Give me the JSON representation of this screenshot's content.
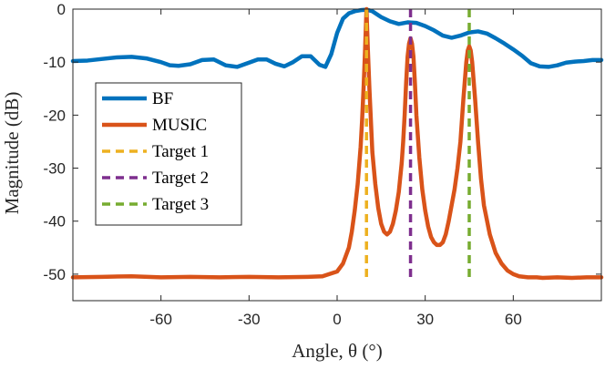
{
  "chart_data": {
    "type": "line",
    "title": "",
    "xlabel": "Angle, θ (°)",
    "ylabel": "Magnitude (dB)",
    "xlim": [
      -90,
      90
    ],
    "ylim": [
      -55,
      0
    ],
    "xticks": [
      -60,
      -30,
      0,
      30,
      60
    ],
    "yticks": [
      0,
      -10,
      -20,
      -30,
      -40,
      -50
    ],
    "xtick_labels": [
      "-60",
      "-30",
      "0",
      "30",
      "60"
    ],
    "ytick_labels": [
      "0",
      "-10",
      "-20",
      "-30",
      "-40",
      "-50"
    ],
    "grid": false,
    "legend_position": "left",
    "series": [
      {
        "name": "BF",
        "color": "#0072BD",
        "style": "solid",
        "x": [
          -90,
          -85,
          -80,
          -75,
          -70,
          -65,
          -60,
          -57,
          -54,
          -50,
          -46,
          -42,
          -38,
          -34,
          -30,
          -27,
          -24,
          -21,
          -18,
          -15,
          -12,
          -9,
          -6,
          -4,
          -2,
          0,
          2,
          4,
          6,
          8,
          10,
          12,
          15,
          18,
          21,
          24,
          27,
          30,
          33,
          36,
          39,
          42,
          45,
          48,
          51,
          54,
          57,
          60,
          63,
          66,
          69,
          72,
          75,
          78,
          81,
          84,
          87,
          90
        ],
        "y": [
          -9.8,
          -9.7,
          -9.4,
          -9.1,
          -9.0,
          -9.3,
          -10.0,
          -10.6,
          -10.7,
          -10.4,
          -9.6,
          -9.5,
          -10.6,
          -10.9,
          -10.1,
          -9.5,
          -9.5,
          -10.3,
          -10.8,
          -10.0,
          -8.9,
          -8.9,
          -10.5,
          -10.9,
          -8.5,
          -4.5,
          -1.8,
          -0.8,
          -0.4,
          -0.2,
          -0.1,
          -0.4,
          -1.5,
          -2.3,
          -2.8,
          -2.5,
          -2.6,
          -3.2,
          -4.0,
          -5.0,
          -5.4,
          -5.0,
          -4.4,
          -4.2,
          -4.6,
          -5.5,
          -6.5,
          -7.6,
          -8.8,
          -10.2,
          -10.8,
          -10.9,
          -10.6,
          -10.1,
          -9.9,
          -9.8,
          -9.6,
          -9.6
        ]
      },
      {
        "name": "MUSIC",
        "color": "#D95319",
        "style": "solid",
        "x": [
          -90,
          -80,
          -70,
          -60,
          -50,
          -40,
          -30,
          -20,
          -10,
          -5,
          0,
          2,
          4,
          5,
          6,
          7,
          8,
          8.5,
          9,
          9.5,
          10,
          10.5,
          11,
          11.5,
          12,
          13,
          14,
          15,
          16,
          17,
          18,
          19,
          20,
          21,
          22,
          22.5,
          23,
          23.5,
          24,
          24.5,
          25,
          25.5,
          26,
          26.5,
          27,
          28,
          29,
          30,
          31,
          32,
          33,
          34,
          35,
          36,
          37,
          38,
          39,
          40,
          41,
          42,
          42.5,
          43,
          43.5,
          44,
          44.5,
          45,
          45.5,
          46,
          46.5,
          47,
          48,
          49,
          50,
          52,
          54,
          56,
          58,
          60,
          62,
          65,
          68,
          70,
          75,
          80,
          85,
          90
        ],
        "y": [
          -50.6,
          -50.5,
          -50.4,
          -50.6,
          -50.5,
          -50.6,
          -50.5,
          -50.6,
          -50.5,
          -50.4,
          -49.5,
          -48.0,
          -45.0,
          -42.0,
          -38.0,
          -33.0,
          -26.0,
          -21.0,
          -15.0,
          -8.0,
          0.0,
          -8.0,
          -15.0,
          -21.0,
          -27.0,
          -33.0,
          -37.5,
          -40.5,
          -42.0,
          -42.5,
          -42.0,
          -40.5,
          -38.0,
          -34.5,
          -29.0,
          -25.0,
          -20.0,
          -14.0,
          -9.0,
          -6.5,
          -5.5,
          -6.5,
          -9.0,
          -14.0,
          -20.0,
          -28.0,
          -34.0,
          -38.0,
          -41.0,
          -43.0,
          -44.0,
          -44.5,
          -44.5,
          -44.0,
          -42.5,
          -40.0,
          -37.0,
          -34.0,
          -30.0,
          -25.0,
          -21.0,
          -17.0,
          -13.5,
          -10.0,
          -7.8,
          -7.0,
          -7.8,
          -10.0,
          -13.5,
          -17.0,
          -25.0,
          -32.0,
          -37.0,
          -42.5,
          -46.0,
          -48.0,
          -49.3,
          -50.0,
          -50.4,
          -50.6,
          -50.6,
          -50.7,
          -50.6,
          -50.7,
          -50.6,
          -50.6
        ]
      }
    ],
    "targets": [
      {
        "name": "Target 1",
        "color": "#EDB120",
        "x": 10,
        "y_top": 0,
        "y_bottom": -50.6
      },
      {
        "name": "Target 2",
        "color": "#7E2F8E",
        "x": 25,
        "y_top": 0,
        "y_bottom": -50.6
      },
      {
        "name": "Target 3",
        "color": "#77AC30",
        "x": 45,
        "y_top": 0,
        "y_bottom": -50.6
      }
    ]
  }
}
